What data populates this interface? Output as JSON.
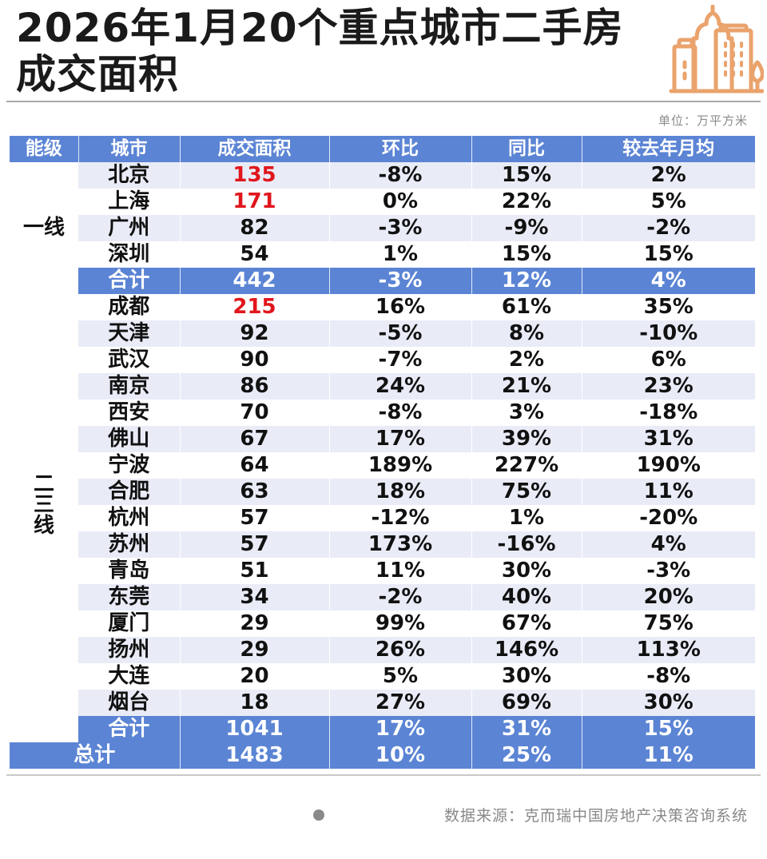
{
  "header": {
    "title_line1": "2026年1月20个重点城市二手房",
    "title_line2": "成交面积",
    "unit": "单位：万平方米",
    "logo_icon": "city-buildings-icon",
    "accent_color": "#eaa36c"
  },
  "table": {
    "header_color": "#5b84d4",
    "highlight_color": "#e0161c",
    "columns": [
      "能级",
      "城市",
      "成交面积",
      "环比",
      "同比",
      "较去年月均"
    ],
    "groups": [
      {
        "tier": "一线",
        "rows": [
          {
            "city": "北京",
            "area": "135",
            "mom": "-8%",
            "yoy": "15%",
            "vs_avg": "2%",
            "highlight": true
          },
          {
            "city": "上海",
            "area": "171",
            "mom": "0%",
            "yoy": "22%",
            "vs_avg": "5%",
            "highlight": true
          },
          {
            "city": "广州",
            "area": "82",
            "mom": "-3%",
            "yoy": "-9%",
            "vs_avg": "-2%",
            "highlight": false
          },
          {
            "city": "深圳",
            "area": "54",
            "mom": "1%",
            "yoy": "15%",
            "vs_avg": "15%",
            "highlight": false
          }
        ],
        "subtotal": {
          "label": "合计",
          "area": "442",
          "mom": "-3%",
          "yoy": "12%",
          "vs_avg": "4%"
        }
      },
      {
        "tier": "二三线",
        "rows": [
          {
            "city": "成都",
            "area": "215",
            "mom": "16%",
            "yoy": "61%",
            "vs_avg": "35%",
            "highlight": true
          },
          {
            "city": "天津",
            "area": "92",
            "mom": "-5%",
            "yoy": "8%",
            "vs_avg": "-10%",
            "highlight": false
          },
          {
            "city": "武汉",
            "area": "90",
            "mom": "-7%",
            "yoy": "2%",
            "vs_avg": "6%",
            "highlight": false
          },
          {
            "city": "南京",
            "area": "86",
            "mom": "24%",
            "yoy": "21%",
            "vs_avg": "23%",
            "highlight": false
          },
          {
            "city": "西安",
            "area": "70",
            "mom": "-8%",
            "yoy": "3%",
            "vs_avg": "-18%",
            "highlight": false
          },
          {
            "city": "佛山",
            "area": "67",
            "mom": "17%",
            "yoy": "39%",
            "vs_avg": "31%",
            "highlight": false
          },
          {
            "city": "宁波",
            "area": "64",
            "mom": "189%",
            "yoy": "227%",
            "vs_avg": "190%",
            "highlight": false
          },
          {
            "city": "合肥",
            "area": "63",
            "mom": "18%",
            "yoy": "75%",
            "vs_avg": "11%",
            "highlight": false
          },
          {
            "city": "杭州",
            "area": "57",
            "mom": "-12%",
            "yoy": "1%",
            "vs_avg": "-20%",
            "highlight": false
          },
          {
            "city": "苏州",
            "area": "57",
            "mom": "173%",
            "yoy": "-16%",
            "vs_avg": "4%",
            "highlight": false
          },
          {
            "city": "青岛",
            "area": "51",
            "mom": "11%",
            "yoy": "30%",
            "vs_avg": "-3%",
            "highlight": false
          },
          {
            "city": "东莞",
            "area": "34",
            "mom": "-2%",
            "yoy": "40%",
            "vs_avg": "20%",
            "highlight": false
          },
          {
            "city": "厦门",
            "area": "29",
            "mom": "99%",
            "yoy": "67%",
            "vs_avg": "75%",
            "highlight": false
          },
          {
            "city": "扬州",
            "area": "29",
            "mom": "26%",
            "yoy": "146%",
            "vs_avg": "113%",
            "highlight": false
          },
          {
            "city": "大连",
            "area": "20",
            "mom": "5%",
            "yoy": "30%",
            "vs_avg": "-8%",
            "highlight": false
          },
          {
            "city": "烟台",
            "area": "18",
            "mom": "27%",
            "yoy": "69%",
            "vs_avg": "30%",
            "highlight": false
          }
        ],
        "subtotal": {
          "label": "合计",
          "area": "1041",
          "mom": "17%",
          "yoy": "31%",
          "vs_avg": "15%"
        }
      }
    ],
    "total": {
      "label": "总计",
      "area": "1483",
      "mom": "10%",
      "yoy": "25%",
      "vs_avg": "11%"
    }
  },
  "footer": {
    "source": "数据来源：克而瑞中国房地产决策咨询系统"
  },
  "chart_data": {
    "type": "table",
    "title": "2026年1月20个重点城市二手房成交面积",
    "unit": "万平方米",
    "columns": [
      "能级",
      "城市",
      "成交面积",
      "环比",
      "同比",
      "较去年月均"
    ],
    "rows": [
      [
        "一线",
        "北京",
        135,
        "-8%",
        "15%",
        "2%"
      ],
      [
        "一线",
        "上海",
        171,
        "0%",
        "22%",
        "5%"
      ],
      [
        "一线",
        "广州",
        82,
        "-3%",
        "-9%",
        "-2%"
      ],
      [
        "一线",
        "深圳",
        54,
        "1%",
        "15%",
        "15%"
      ],
      [
        "一线",
        "合计",
        442,
        "-3%",
        "12%",
        "4%"
      ],
      [
        "二三线",
        "成都",
        215,
        "16%",
        "61%",
        "35%"
      ],
      [
        "二三线",
        "天津",
        92,
        "-5%",
        "8%",
        "-10%"
      ],
      [
        "二三线",
        "武汉",
        90,
        "-7%",
        "2%",
        "6%"
      ],
      [
        "二三线",
        "南京",
        86,
        "24%",
        "21%",
        "23%"
      ],
      [
        "二三线",
        "西安",
        70,
        "-8%",
        "3%",
        "-18%"
      ],
      [
        "二三线",
        "佛山",
        67,
        "17%",
        "39%",
        "31%"
      ],
      [
        "二三线",
        "宁波",
        64,
        "189%",
        "227%",
        "190%"
      ],
      [
        "二三线",
        "合肥",
        63,
        "18%",
        "75%",
        "11%"
      ],
      [
        "二三线",
        "杭州",
        57,
        "-12%",
        "1%",
        "-20%"
      ],
      [
        "二三线",
        "苏州",
        57,
        "173%",
        "-16%",
        "4%"
      ],
      [
        "二三线",
        "青岛",
        51,
        "11%",
        "30%",
        "-3%"
      ],
      [
        "二三线",
        "东莞",
        34,
        "-2%",
        "40%",
        "20%"
      ],
      [
        "二三线",
        "厦门",
        29,
        "99%",
        "67%",
        "75%"
      ],
      [
        "二三线",
        "扬州",
        29,
        "26%",
        "146%",
        "113%"
      ],
      [
        "二三线",
        "大连",
        20,
        "5%",
        "30%",
        "-8%"
      ],
      [
        "二三线",
        "烟台",
        18,
        "27%",
        "69%",
        "30%"
      ],
      [
        "二三线",
        "合计",
        1041,
        "17%",
        "31%",
        "15%"
      ],
      [
        "",
        "总计",
        1483,
        "10%",
        "25%",
        "11%"
      ]
    ]
  }
}
